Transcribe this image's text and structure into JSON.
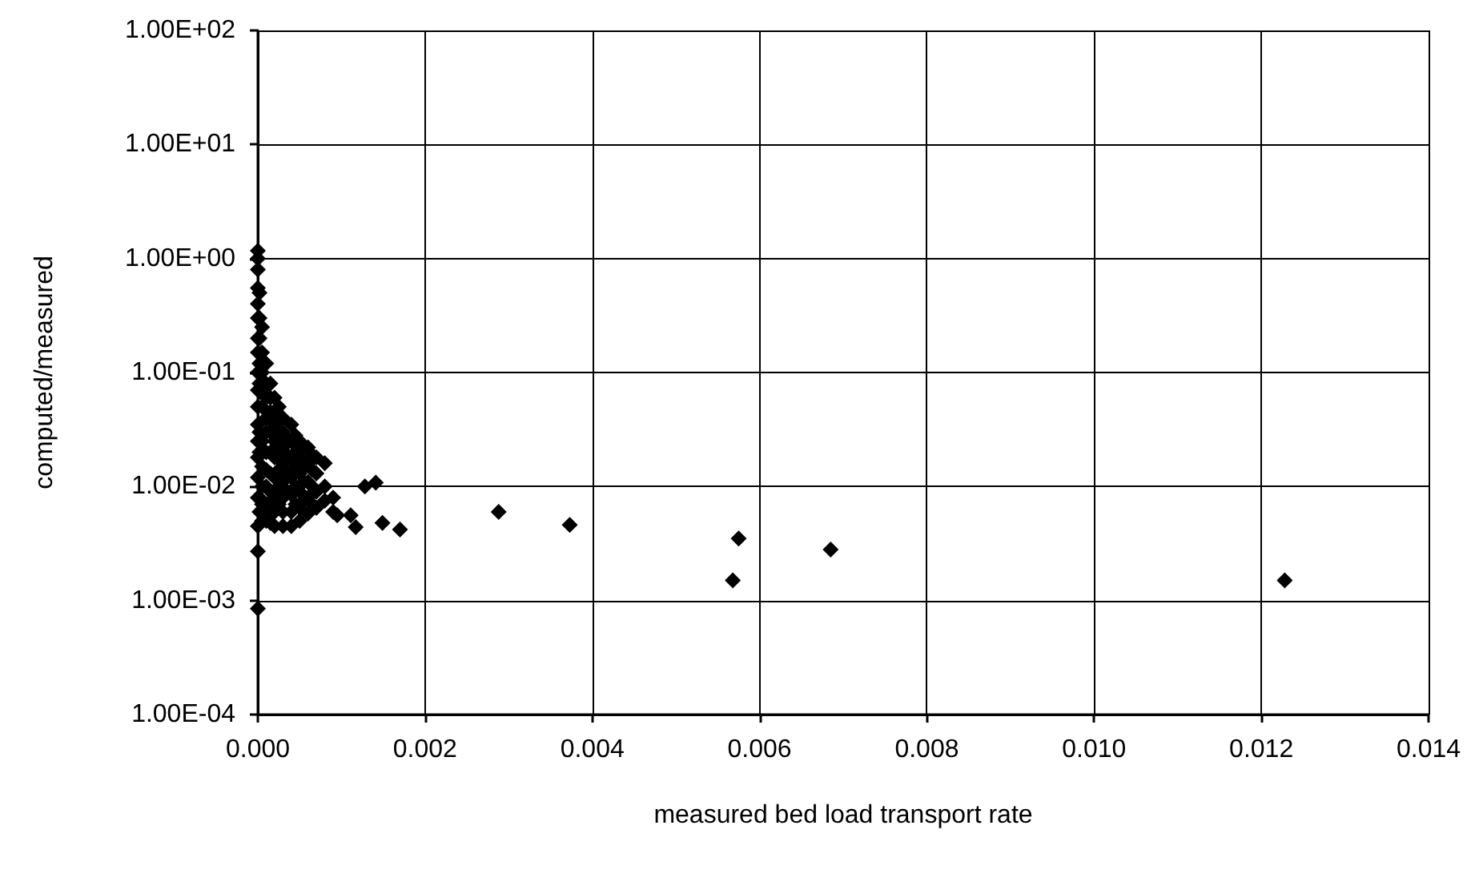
{
  "chart_data": {
    "type": "scatter",
    "xlabel": "measured bed load transport rate",
    "ylabel": "computed/measured",
    "log": "y",
    "grid": true,
    "marker": "diamond",
    "xlim": [
      0,
      0.014
    ],
    "xticks": [
      {
        "value": 0,
        "label": "0.000"
      },
      {
        "value": 0.002,
        "label": "0.002"
      },
      {
        "value": 0.004,
        "label": "0.004"
      },
      {
        "value": 0.006,
        "label": "0.006"
      },
      {
        "value": 0.008,
        "label": "0.008"
      },
      {
        "value": 0.01,
        "label": "0.010"
      },
      {
        "value": 0.012,
        "label": "0.012"
      },
      {
        "value": 0.014,
        "label": "0.014"
      }
    ],
    "ylim": [
      0.0001,
      100
    ],
    "yticks": [
      {
        "value": 0.0001,
        "label": "1.00E-04"
      },
      {
        "value": 0.001,
        "label": "1.00E-03"
      },
      {
        "value": 0.01,
        "label": "1.00E-02"
      },
      {
        "value": 0.1,
        "label": "1.00E-01"
      },
      {
        "value": 1,
        "label": "1.00E+00"
      },
      {
        "value": 10,
        "label": "1.00E+01"
      },
      {
        "value": 100,
        "label": "1.00E+02"
      }
    ],
    "series": [
      {
        "color": "#000000",
        "x": [
          0,
          0,
          0,
          0,
          0,
          0,
          0,
          0,
          0,
          0,
          0,
          0,
          0,
          0,
          0,
          0,
          0,
          0,
          0,
          2e-05,
          2e-05,
          2e-05,
          2e-05,
          2e-05,
          2e-05,
          2e-05,
          2e-05,
          2e-05,
          5e-05,
          5e-05,
          5e-05,
          5e-05,
          5e-05,
          5e-05,
          5e-05,
          5e-05,
          5e-05,
          5e-05,
          0.0001,
          0.0001,
          0.0001,
          0.0001,
          0.0001,
          0.0001,
          0.0001,
          0.0001,
          0.0001,
          0.0001,
          0.00015,
          0.00015,
          0.00015,
          0.00015,
          0.00015,
          0.00015,
          0.00015,
          0.00015,
          0.00015,
          0.0002,
          0.0002,
          0.0002,
          0.0002,
          0.0002,
          0.0002,
          0.0002,
          0.0002,
          0.0002,
          0.0003,
          0.0003,
          0.0003,
          0.0003,
          0.0003,
          0.0003,
          0.0003,
          0.0003,
          0.0004,
          0.0004,
          0.0004,
          0.0004,
          0.0004,
          0.0004,
          0.0004,
          0.0005,
          0.0005,
          0.0005,
          0.0005,
          0.0005,
          0.0005,
          0.0006,
          0.0006,
          0.0006,
          0.0006,
          0.0006,
          0.0007,
          0.0007,
          0.0007,
          0.0007,
          0.0008,
          0.0008,
          0.0008,
          0.0009,
          0.0009,
          0.00095,
          0.00111,
          0.00117,
          0.00128,
          0.00141,
          0.00149,
          0.0017,
          0.00288,
          0.00373,
          0.00568,
          0.00575,
          0.00685,
          0.01228,
          0.00025,
          0.00025,
          0.00025,
          0.00025,
          0.00025,
          0.00025,
          0.00035,
          0.00035,
          0.00035,
          0.00035,
          0.00045,
          0.00045,
          0.00045,
          0.00045,
          0.00045,
          0.00055,
          0.00055,
          0.00055,
          0.00055,
          0.00065,
          0.00065,
          0.00065,
          0.00065
        ],
        "values": [
          1.17,
          1.0,
          0.8,
          0.55,
          0.4,
          0.3,
          0.2,
          0.15,
          0.1,
          0.07,
          0.05,
          0.035,
          0.025,
          0.018,
          0.012,
          0.008,
          0.0045,
          0.0027,
          0.00085,
          0.5,
          0.3,
          0.2,
          0.12,
          0.08,
          0.03,
          0.02,
          0.008,
          0.006,
          0.25,
          0.15,
          0.1,
          0.07,
          0.05,
          0.025,
          0.015,
          0.01,
          0.007,
          0.005,
          0.12,
          0.08,
          0.06,
          0.04,
          0.03,
          0.02,
          0.014,
          0.01,
          0.007,
          0.005,
          0.08,
          0.06,
          0.045,
          0.03,
          0.02,
          0.013,
          0.009,
          0.006,
          0.0048,
          0.06,
          0.045,
          0.035,
          0.025,
          0.018,
          0.012,
          0.008,
          0.006,
          0.0045,
          0.04,
          0.03,
          0.022,
          0.016,
          0.011,
          0.008,
          0.006,
          0.0045,
          0.035,
          0.025,
          0.018,
          0.012,
          0.0085,
          0.006,
          0.0045,
          0.025,
          0.018,
          0.013,
          0.009,
          0.0065,
          0.005,
          0.022,
          0.016,
          0.011,
          0.008,
          0.0058,
          0.018,
          0.013,
          0.009,
          0.0065,
          0.016,
          0.01,
          0.0075,
          0.008,
          0.006,
          0.0056,
          0.0056,
          0.0044,
          0.01,
          0.0108,
          0.0048,
          0.0042,
          0.006,
          0.0046,
          0.0015,
          0.0035,
          0.0028,
          0.0015,
          0.05,
          0.03,
          0.02,
          0.014,
          0.01,
          0.007,
          0.026,
          0.019,
          0.013,
          0.009,
          0.028,
          0.02,
          0.015,
          0.01,
          0.007,
          0.022,
          0.015,
          0.011,
          0.0075,
          0.019,
          0.014,
          0.01,
          0.007
        ]
      }
    ]
  }
}
